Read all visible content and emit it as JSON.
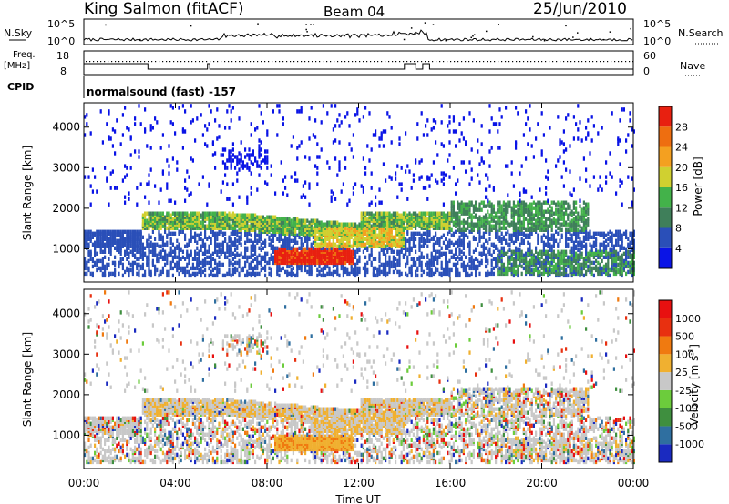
{
  "header": {
    "station": "King Salmon (fitACF)",
    "beam": "Beam 04",
    "date": "25/Jun/2010"
  },
  "top_panels": {
    "nsky_label": "N.Sky",
    "nsearch_label": "N.Search",
    "nsky_ticks": [
      "10^5",
      "10^0"
    ],
    "nsearch_ticks": [
      "10^5",
      "10^0"
    ],
    "freq_label_line1": "Freq.",
    "freq_label_line2": "[MHz]",
    "freq_ticks": [
      "18",
      "8"
    ],
    "nave_label": "Nave",
    "nave_ticks": [
      "60",
      "0"
    ],
    "cpid_label": "CPID",
    "cpid_text": "normalsound (fast) -157"
  },
  "chart_data": [
    {
      "type": "heatmap",
      "name": "power",
      "ylabel": "Slant Range [km]",
      "xlabel": "",
      "ylim": [
        180,
        4600
      ],
      "yticks": [
        "1000",
        "2000",
        "3000",
        "4000"
      ],
      "colorbar": {
        "label": "Power [dB]",
        "range": [
          0,
          30
        ],
        "ticks": [
          "4",
          "8",
          "12",
          "16",
          "20",
          "24",
          "28"
        ],
        "colors": [
          "#0a14e6",
          "#2a4fb8",
          "#3f7f5a",
          "#43b24a",
          "#d0d030",
          "#f4a020",
          "#ee6e10",
          "#e82010"
        ]
      }
    },
    {
      "type": "heatmap",
      "name": "velocity",
      "ylabel": "Slant Range [km]",
      "xlabel": "Time UT",
      "ylim": [
        180,
        4600
      ],
      "yticks": [
        "1000",
        "2000",
        "3000",
        "4000"
      ],
      "xticks": [
        "00:00",
        "04:00",
        "08:00",
        "12:00",
        "16:00",
        "20:00",
        "00:00"
      ],
      "colorbar": {
        "label": "Velocity [m s",
        "label_sup": "-1",
        "label_close": "]",
        "ticks": [
          "1000",
          "500",
          "100",
          "25",
          "-25",
          "-100",
          "-500",
          "-1000"
        ],
        "colors": [
          "#1a2ac0",
          "#2f6fa0",
          "#3f8f3f",
          "#6ccc3c",
          "#c8c8c8",
          "#f0b030",
          "#f07a10",
          "#e83010",
          "#e81010"
        ]
      }
    }
  ]
}
